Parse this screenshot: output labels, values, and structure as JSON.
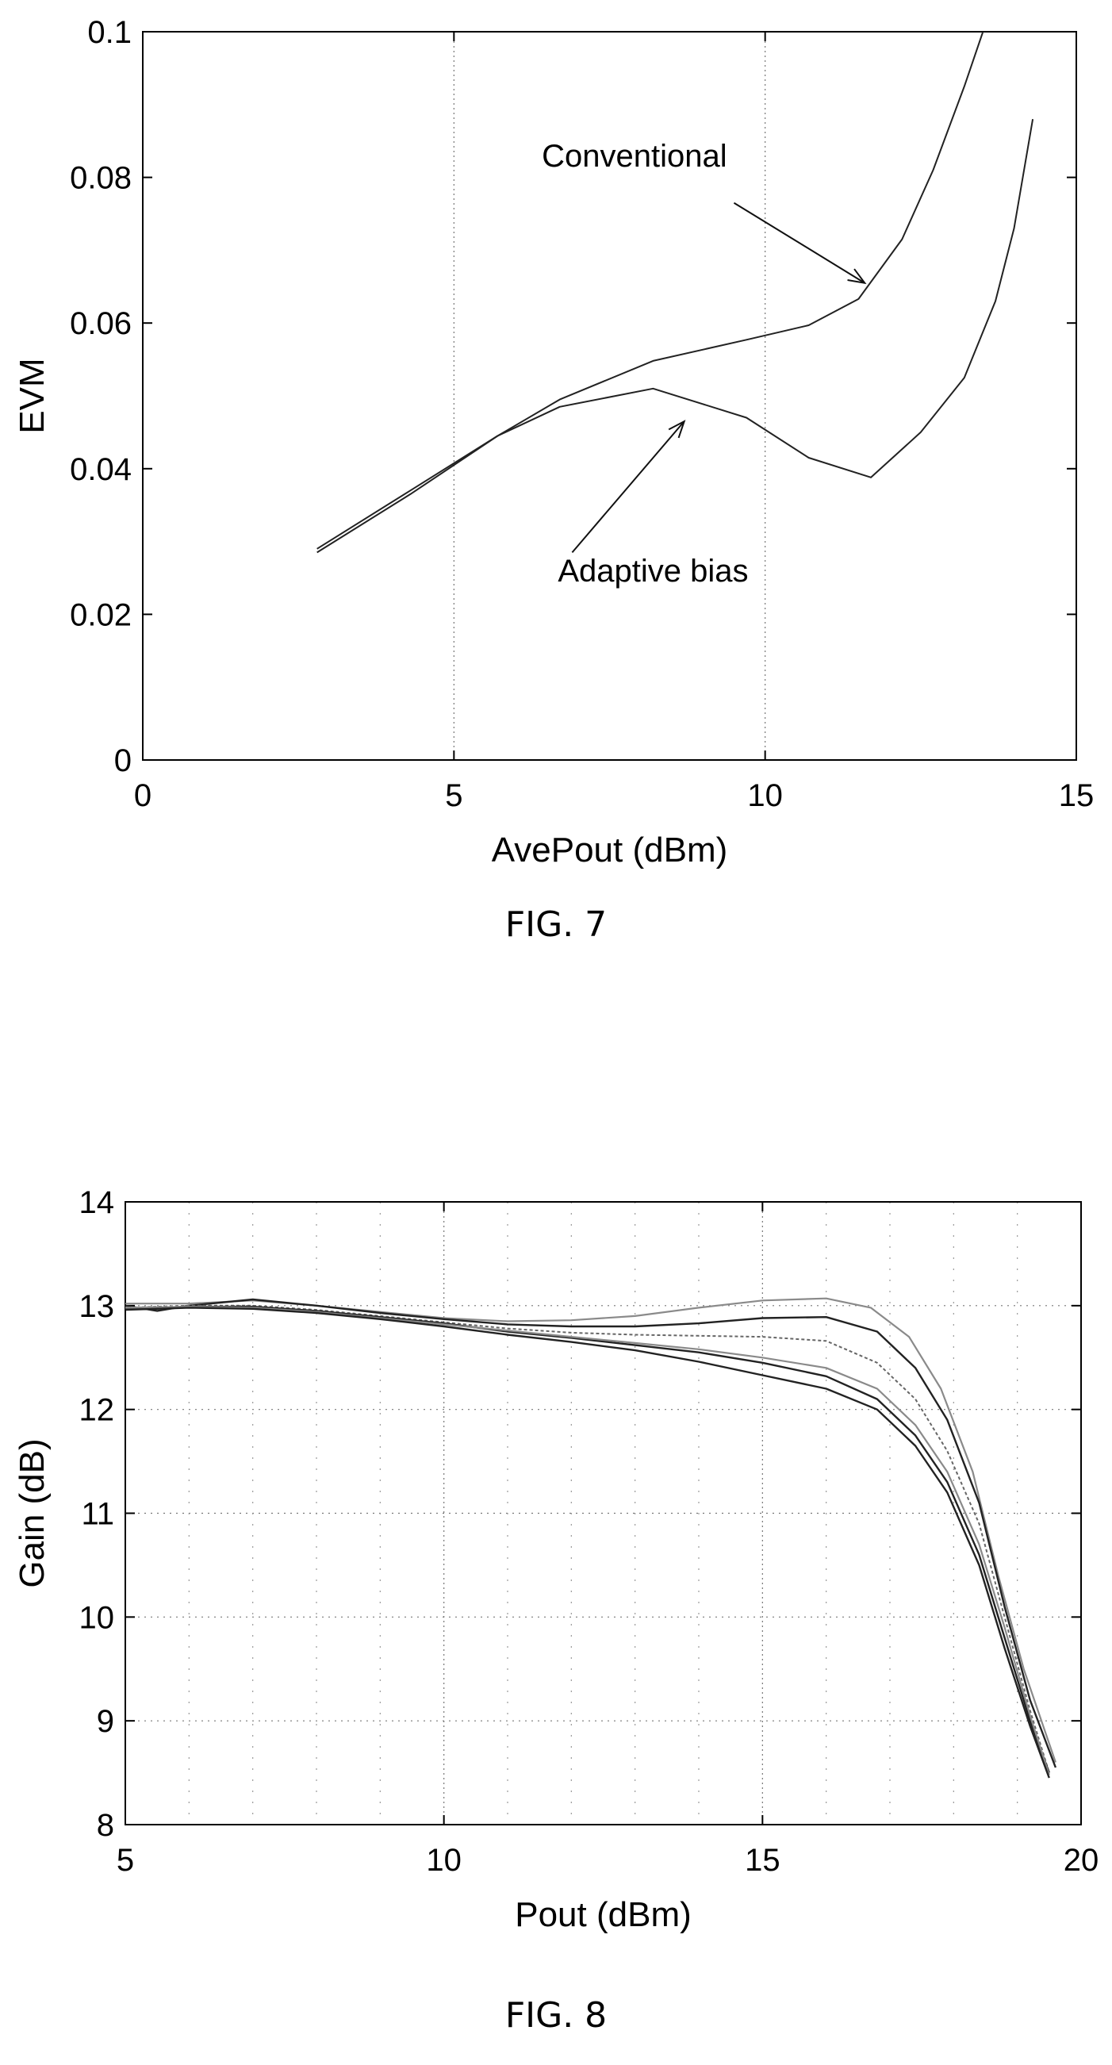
{
  "figures": [
    {
      "caption": "FIG. 7",
      "chart_data": {
        "type": "line",
        "xlabel": "AvePout (dBm)",
        "ylabel": "EVM",
        "xlim": [
          0,
          15
        ],
        "ylim": [
          0,
          0.1
        ],
        "xticks": [
          0,
          5,
          10,
          15
        ],
        "yticks": [
          0,
          0.02,
          0.04,
          0.06,
          0.08,
          0.1
        ],
        "xtick_labels": [
          "0",
          "5",
          "10",
          "15"
        ],
        "ytick_labels": [
          "0",
          "0.02",
          "0.04",
          "0.06",
          "0.08",
          "0.1"
        ],
        "grid": "vertical dotted",
        "series": [
          {
            "name": "Conventional",
            "points": [
              [
                2.8,
                0.0285
              ],
              [
                4.3,
                0.0365
              ],
              [
                5.7,
                0.0445
              ],
              [
                6.7,
                0.0495
              ],
              [
                8.2,
                0.0548
              ],
              [
                9.7,
                0.0577
              ],
              [
                10.7,
                0.0597
              ],
              [
                11.5,
                0.0633
              ],
              [
                12.2,
                0.0715
              ],
              [
                12.7,
                0.081
              ],
              [
                13.2,
                0.0925
              ],
              [
                13.5,
                0.1
              ]
            ]
          },
          {
            "name": "Adaptive bias",
            "points": [
              [
                2.8,
                0.029
              ],
              [
                4.3,
                0.037
              ],
              [
                5.7,
                0.0445
              ],
              [
                6.7,
                0.0485
              ],
              [
                8.2,
                0.051
              ],
              [
                9.7,
                0.047
              ],
              [
                10.7,
                0.0415
              ],
              [
                11.7,
                0.0388
              ],
              [
                12.5,
                0.045
              ],
              [
                13.2,
                0.0525
              ],
              [
                13.7,
                0.063
              ],
              [
                14.0,
                0.073
              ],
              [
                14.3,
                0.088
              ]
            ]
          }
        ],
        "annotations": [
          {
            "text": "Conventional",
            "x": 7.9,
            "y": 0.0815,
            "arrow_from": [
              9.5,
              0.0765
            ],
            "arrow_to": [
              11.6,
              0.0655
            ]
          },
          {
            "text": "Adaptive bias",
            "x": 8.2,
            "y": 0.0245,
            "arrow_from": [
              6.9,
              0.0285
            ],
            "arrow_to": [
              8.7,
              0.0465
            ]
          }
        ]
      }
    },
    {
      "caption": "FIG. 8",
      "chart_data": {
        "type": "line",
        "xlabel": "Pout (dBm)",
        "ylabel": "Gain (dB)",
        "xlim": [
          5,
          20
        ],
        "ylim": [
          8,
          14
        ],
        "xticks": [
          5,
          10,
          15,
          20
        ],
        "yticks": [
          8,
          9,
          10,
          11,
          12,
          13,
          14
        ],
        "xtick_labels": [
          "5",
          "10",
          "15",
          "20"
        ],
        "ytick_labels": [
          "8",
          "9",
          "10",
          "11",
          "12",
          "13",
          "14"
        ],
        "grid": "dotted",
        "series": [
          {
            "style": "light",
            "points": [
              [
                5,
                13.02
              ],
              [
                6,
                13.02
              ],
              [
                7,
                13.05
              ],
              [
                8,
                13.0
              ],
              [
                9,
                12.94
              ],
              [
                10,
                12.88
              ],
              [
                11,
                12.85
              ],
              [
                12,
                12.86
              ],
              [
                13,
                12.9
              ],
              [
                14,
                12.98
              ],
              [
                15,
                13.05
              ],
              [
                16,
                13.07
              ],
              [
                16.7,
                12.98
              ],
              [
                17.3,
                12.7
              ],
              [
                17.8,
                12.2
              ],
              [
                18.3,
                11.4
              ],
              [
                18.7,
                10.4
              ],
              [
                19.1,
                9.5
              ],
              [
                19.6,
                8.6
              ]
            ]
          },
          {
            "style": "dark",
            "points": [
              [
                5,
                13.0
              ],
              [
                5.5,
                12.95
              ],
              [
                6,
                13.0
              ],
              [
                7,
                13.06
              ],
              [
                8,
                13.0
              ],
              [
                9,
                12.93
              ],
              [
                10,
                12.87
              ],
              [
                11,
                12.82
              ],
              [
                12,
                12.8
              ],
              [
                13,
                12.8
              ],
              [
                14,
                12.83
              ],
              [
                15,
                12.88
              ],
              [
                16,
                12.89
              ],
              [
                16.8,
                12.75
              ],
              [
                17.4,
                12.4
              ],
              [
                17.9,
                11.9
              ],
              [
                18.4,
                11.1
              ],
              [
                18.8,
                10.1
              ],
              [
                19.2,
                9.2
              ],
              [
                19.6,
                8.55
              ]
            ]
          },
          {
            "style": "dotted",
            "points": [
              [
                5,
                12.98
              ],
              [
                6,
                13.0
              ],
              [
                7,
                13.0
              ],
              [
                8,
                12.96
              ],
              [
                9,
                12.9
              ],
              [
                10,
                12.84
              ],
              [
                11,
                12.78
              ],
              [
                12,
                12.74
              ],
              [
                13,
                12.72
              ],
              [
                14,
                12.71
              ],
              [
                15,
                12.7
              ],
              [
                16,
                12.66
              ],
              [
                16.8,
                12.45
              ],
              [
                17.4,
                12.1
              ],
              [
                17.9,
                11.6
              ],
              [
                18.4,
                10.9
              ],
              [
                18.8,
                10.0
              ],
              [
                19.2,
                9.1
              ],
              [
                19.5,
                8.5
              ]
            ]
          },
          {
            "style": "dark",
            "points": [
              [
                5,
                12.97
              ],
              [
                6,
                12.99
              ],
              [
                7,
                12.99
              ],
              [
                8,
                12.95
              ],
              [
                9,
                12.89
              ],
              [
                10,
                12.83
              ],
              [
                11,
                12.75
              ],
              [
                12,
                12.69
              ],
              [
                13,
                12.62
              ],
              [
                14,
                12.55
              ],
              [
                15,
                12.45
              ],
              [
                16,
                12.32
              ],
              [
                16.8,
                12.1
              ],
              [
                17.4,
                11.75
              ],
              [
                17.9,
                11.3
              ],
              [
                18.4,
                10.6
              ],
              [
                18.8,
                9.8
              ],
              [
                19.2,
                9.0
              ],
              [
                19.5,
                8.5
              ]
            ]
          },
          {
            "style": "light",
            "points": [
              [
                5,
                12.98
              ],
              [
                6,
                12.99
              ],
              [
                7,
                12.98
              ],
              [
                8,
                12.94
              ],
              [
                9,
                12.88
              ],
              [
                10,
                12.82
              ],
              [
                11,
                12.76
              ],
              [
                12,
                12.7
              ],
              [
                13,
                12.64
              ],
              [
                14,
                12.58
              ],
              [
                15,
                12.5
              ],
              [
                16,
                12.4
              ],
              [
                16.8,
                12.2
              ],
              [
                17.4,
                11.85
              ],
              [
                17.9,
                11.4
              ],
              [
                18.4,
                10.7
              ],
              [
                18.8,
                9.9
              ],
              [
                19.2,
                9.05
              ],
              [
                19.5,
                8.48
              ]
            ]
          },
          {
            "style": "dark",
            "points": [
              [
                5,
                12.96
              ],
              [
                6,
                12.98
              ],
              [
                7,
                12.97
              ],
              [
                8,
                12.93
              ],
              [
                9,
                12.87
              ],
              [
                10,
                12.8
              ],
              [
                11,
                12.72
              ],
              [
                12,
                12.65
              ],
              [
                13,
                12.57
              ],
              [
                14,
                12.46
              ],
              [
                15,
                12.33
              ],
              [
                16,
                12.2
              ],
              [
                16.8,
                12.0
              ],
              [
                17.4,
                11.65
              ],
              [
                17.9,
                11.2
              ],
              [
                18.4,
                10.5
              ],
              [
                18.8,
                9.7
              ],
              [
                19.2,
                8.95
              ],
              [
                19.5,
                8.45
              ]
            ]
          }
        ]
      }
    }
  ]
}
